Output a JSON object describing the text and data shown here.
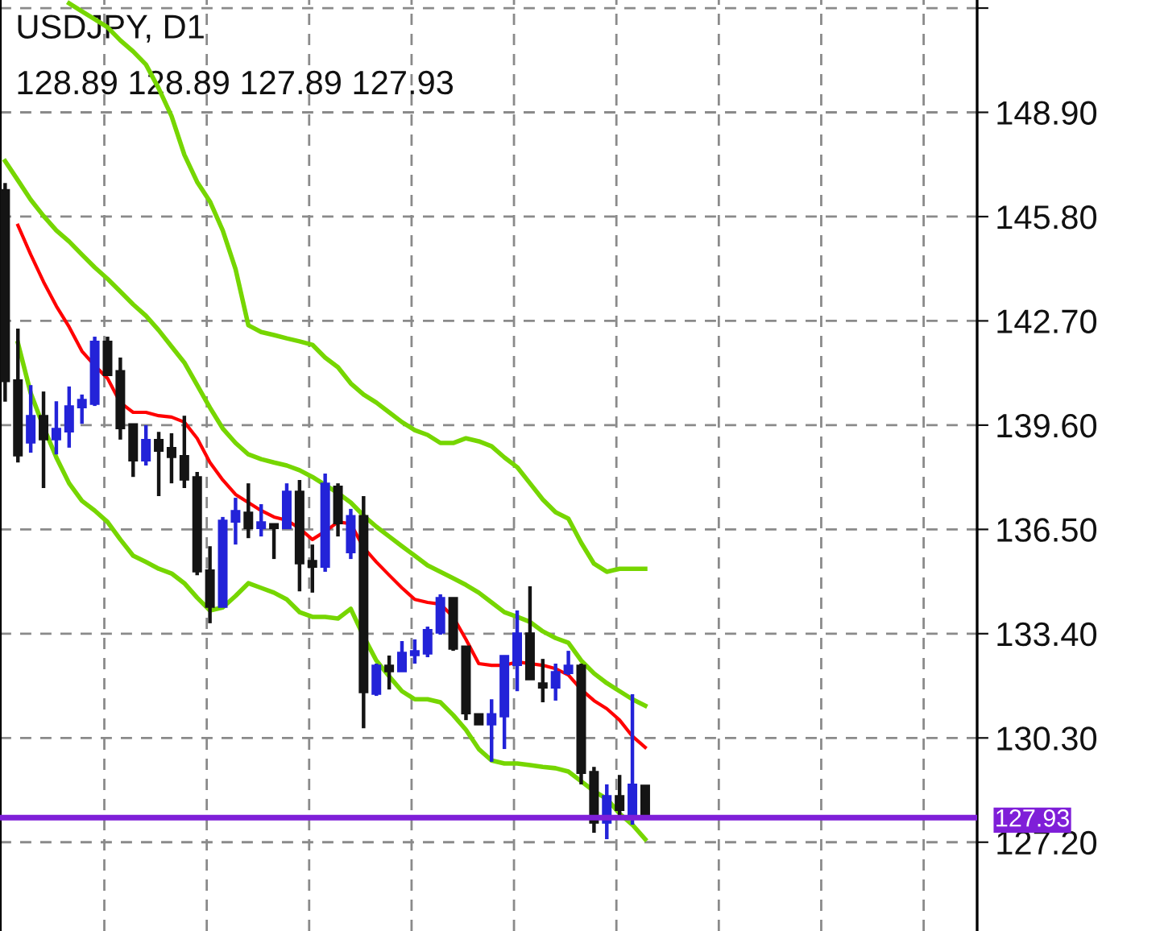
{
  "chart_data": {
    "type": "candlestick",
    "title": "USDJPY, D1",
    "subtitle": "128.89 128.89 127.89 127.93",
    "categories": [
      null,
      null,
      null,
      null,
      null,
      null,
      null,
      null,
      null,
      null,
      null,
      null,
      null,
      null,
      null,
      null,
      null,
      null,
      null,
      null,
      null,
      null,
      null,
      null,
      null,
      null,
      null,
      null,
      null,
      null,
      null,
      null,
      null,
      null,
      null,
      null,
      null,
      null,
      null,
      null,
      null,
      null,
      null,
      null,
      null,
      null,
      null,
      null,
      null,
      null,
      null
    ],
    "ohlc": [
      [
        146.6,
        146.8,
        140.3,
        140.9
      ],
      [
        140.94,
        142.47,
        138.49,
        138.69
      ],
      [
        139.07,
        140.79,
        138.78,
        139.88
      ],
      [
        139.88,
        140.6,
        137.73,
        139.17
      ],
      [
        139.17,
        140.31,
        138.73,
        139.5
      ],
      [
        139.4,
        140.75,
        138.93,
        140.17
      ],
      [
        140.12,
        140.51,
        139.64,
        140.36
      ],
      [
        140.22,
        142.23,
        140.17,
        142.09
      ],
      [
        142.09,
        142.23,
        141.08,
        141.08
      ],
      [
        141.22,
        141.61,
        139.17,
        139.5
      ],
      [
        139.64,
        139.64,
        138.06,
        138.54
      ],
      [
        138.54,
        139.6,
        138.4,
        139.17
      ],
      [
        139.17,
        139.4,
        137.49,
        138.83
      ],
      [
        138.93,
        139.36,
        137.87,
        138.64
      ],
      [
        138.69,
        139.88,
        137.73,
        137.97
      ],
      [
        138.06,
        138.21,
        135.14,
        135.24
      ],
      [
        135.29,
        136.0,
        133.71,
        134.19
      ],
      [
        134.19,
        136.87,
        134.19,
        136.77
      ],
      [
        136.72,
        137.44,
        136.05,
        137.06
      ],
      [
        137.01,
        137.87,
        136.24,
        136.53
      ],
      [
        136.53,
        137.25,
        136.29,
        136.72
      ],
      [
        136.67,
        136.67,
        135.62,
        136.53
      ],
      [
        136.53,
        137.87,
        136.53,
        137.63
      ],
      [
        137.63,
        137.97,
        134.66,
        135.48
      ],
      [
        135.57,
        136.05,
        134.62,
        135.38
      ],
      [
        135.38,
        138.16,
        135.24,
        137.87
      ],
      [
        137.78,
        137.87,
        136.29,
        136.67
      ],
      [
        135.81,
        137.11,
        135.62,
        136.91
      ],
      [
        136.91,
        137.49,
        130.59,
        131.65
      ],
      [
        131.6,
        132.51,
        131.55,
        132.46
      ],
      [
        132.46,
        132.75,
        131.74,
        132.27
      ],
      [
        132.27,
        133.18,
        132.27,
        132.84
      ],
      [
        132.75,
        133.23,
        132.51,
        132.89
      ],
      [
        132.8,
        133.61,
        132.7,
        133.52
      ],
      [
        133.42,
        134.57,
        133.37,
        134.47
      ],
      [
        134.47,
        134.47,
        132.89,
        132.94
      ],
      [
        133.03,
        133.03,
        130.83,
        131.02
      ],
      [
        131.02,
        131.02,
        130.69,
        130.69
      ],
      [
        130.69,
        131.45,
        129.59,
        131.02
      ],
      [
        130.93,
        132.75,
        129.97,
        132.75
      ],
      [
        132.46,
        134.09,
        131.69,
        133.42
      ],
      [
        133.42,
        134.81,
        132.03,
        132.03
      ],
      [
        131.93,
        132.65,
        131.36,
        131.79
      ],
      [
        131.79,
        132.51,
        131.41,
        132.27
      ],
      [
        132.22,
        132.89,
        132.17,
        132.46
      ],
      [
        132.46,
        132.51,
        128.92,
        129.25
      ],
      [
        129.3,
        129.44,
        127.48,
        127.77
      ],
      [
        127.77,
        128.92,
        127.29,
        128.58
      ],
      [
        128.58,
        129.2,
        127.96,
        128.15
      ],
      [
        127.91,
        131.6,
        127.72,
        128.92
      ],
      [
        128.89,
        128.89,
        127.89,
        127.93
      ]
    ],
    "colors": [
      "#141414",
      "#141414",
      "#2323d8",
      "#141414",
      "#2323d8",
      "#2323d8",
      "#2323d8",
      "#2323d8",
      "#141414",
      "#141414",
      "#141414",
      "#2323d8",
      "#141414",
      "#141414",
      "#141414",
      "#141414",
      "#141414",
      "#2323d8",
      "#2323d8",
      "#141414",
      "#2323d8",
      "#141414",
      "#2323d8",
      "#141414",
      "#141414",
      "#2323d8",
      "#141414",
      "#2323d8",
      "#141414",
      "#2323d8",
      "#141414",
      "#2323d8",
      "#2323d8",
      "#2323d8",
      "#2323d8",
      "#141414",
      "#141414",
      "#141414",
      "#2323d8",
      "#2323d8",
      "#2323d8",
      "#141414",
      "#141414",
      "#2323d8",
      "#2323d8",
      "#141414",
      "#141414",
      "#2323d8",
      "#141414",
      "#2323d8",
      "#141414"
    ],
    "series": [
      {
        "type": "line",
        "color": "#ff0000",
        "values": [
          null,
          145.54,
          144.67,
          143.86,
          143.14,
          142.52,
          141.8,
          141.37,
          140.99,
          140.27,
          139.98,
          139.98,
          139.88,
          139.84,
          139.69,
          139.21,
          138.49,
          137.97,
          137.54,
          137.3,
          137.06,
          136.87,
          136.77,
          136.53,
          136.2,
          136.44,
          136.72,
          136.67,
          135.96,
          135.53,
          135.14,
          134.76,
          134.42,
          134.33,
          134.28,
          133.9,
          133.23,
          132.51,
          132.46,
          132.46,
          132.56,
          132.51,
          132.46,
          132.36,
          132.17,
          131.74,
          131.41,
          131.17,
          130.83,
          130.35,
          130.02
        ]
      },
      {
        "type": "line",
        "color": "#76d600",
        "values": [
          null,
          null,
          null,
          null,
          null,
          152.14,
          151.9,
          151.67,
          151.43,
          151.04,
          150.71,
          150.32,
          149.61,
          148.79,
          147.64,
          146.83,
          146.25,
          145.39,
          144.24,
          142.57,
          142.37,
          142.28,
          142.18,
          142.09,
          141.99,
          141.61,
          141.32,
          140.84,
          140.51,
          140.27,
          139.98,
          139.69,
          139.45,
          139.31,
          139.07,
          139.07,
          139.21,
          139.12,
          138.97,
          138.64,
          138.35,
          137.87,
          137.39,
          137.01,
          136.82,
          136.1,
          135.48,
          135.24,
          135.33,
          135.33,
          135.33
        ]
      },
      {
        "type": "line",
        "color": "#76d600",
        "values": [
          147.45,
          146.88,
          146.3,
          145.82,
          145.39,
          145.06,
          144.67,
          144.29,
          143.95,
          143.57,
          143.19,
          142.85,
          142.42,
          141.94,
          141.46,
          140.79,
          140.12,
          139.5,
          139.07,
          138.73,
          138.59,
          138.49,
          138.4,
          138.26,
          138.06,
          137.82,
          137.58,
          137.3,
          136.91,
          136.58,
          136.29,
          136.0,
          135.72,
          135.43,
          135.24,
          135.05,
          134.85,
          134.62,
          134.33,
          134.04,
          133.9,
          133.75,
          133.47,
          133.27,
          133.13,
          132.6,
          132.22,
          131.93,
          131.69,
          131.45,
          131.26
        ]
      },
      {
        "type": "line",
        "color": "#76d600",
        "values": [
          null,
          142.04,
          140.55,
          139.55,
          138.64,
          137.87,
          137.35,
          137.06,
          136.72,
          136.2,
          135.72,
          135.53,
          135.33,
          135.19,
          134.9,
          134.47,
          134.09,
          134.18,
          134.52,
          134.9,
          134.76,
          134.62,
          134.42,
          134.04,
          133.9,
          133.9,
          133.85,
          134.14,
          133.32,
          132.6,
          132.13,
          131.69,
          131.45,
          131.45,
          131.36,
          130.98,
          130.54,
          129.97,
          129.63,
          129.54,
          129.54,
          129.49,
          129.44,
          129.4,
          129.3,
          129.01,
          128.72,
          128.49,
          128.05,
          127.72,
          127.29
        ]
      }
    ],
    "ylim": [
      124.56,
      152.24
    ],
    "yticks": [
      {
        "value": 127.2,
        "label": "127.20"
      },
      {
        "value": 130.3,
        "label": "130.30"
      },
      {
        "value": 133.4,
        "label": "133.40"
      },
      {
        "value": 136.5,
        "label": "136.50"
      },
      {
        "value": 139.6,
        "label": "139.60"
      },
      {
        "value": 142.7,
        "label": "142.70"
      },
      {
        "value": 145.8,
        "label": "145.80"
      },
      {
        "value": 148.9,
        "label": "148.90"
      },
      {
        "value": 152.0,
        "label": null
      }
    ],
    "grid": true,
    "tick_labels": "y",
    "ref_lines": [
      {
        "axis": "y",
        "value": 127.93,
        "label": "127.93",
        "color": "#7f1fd8"
      }
    ]
  }
}
